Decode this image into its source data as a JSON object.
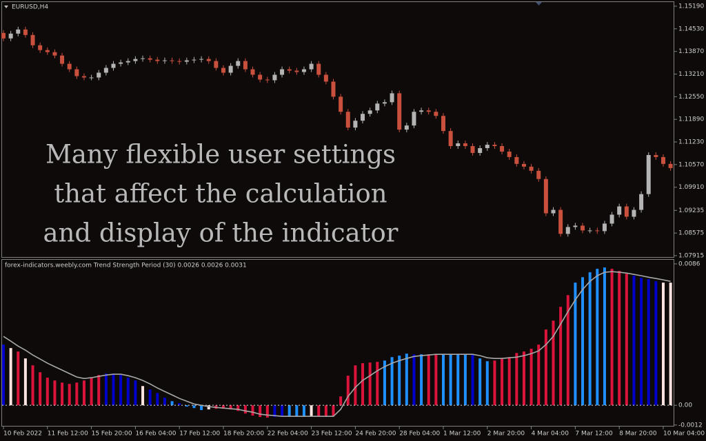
{
  "chart_data": [
    {
      "type": "candlestick",
      "title": "EURUSD,H4",
      "up_color": "#b4b4b4",
      "down_color": "#c9503d",
      "ylim": [
        1.07875,
        1.1531
      ],
      "yticks": [
        {
          "value": 1.1519,
          "label": "1.15190"
        },
        {
          "value": 1.1453,
          "label": "1.14530"
        },
        {
          "value": 1.1387,
          "label": "1.13870"
        },
        {
          "value": 1.1321,
          "label": "1.13210"
        },
        {
          "value": 1.1255,
          "label": "1.12550"
        },
        {
          "value": 1.1189,
          "label": "1.11890"
        },
        {
          "value": 1.1123,
          "label": "1.11230"
        },
        {
          "value": 1.1057,
          "label": "1.10570"
        },
        {
          "value": 1.0991,
          "label": "1.09910"
        },
        1.09235,
        1.08575,
        {
          "value": 1.07915,
          "label": "1.07915"
        }
      ],
      "ohlc": [
        [
          1.1441,
          1.1449,
          1.1417,
          1.1425
        ],
        [
          1.1425,
          1.1447,
          1.1417,
          1.1439
        ],
        [
          1.1439,
          1.1459,
          1.1431,
          1.1451
        ],
        [
          1.1451,
          1.1459,
          1.1427,
          1.1435
        ],
        [
          1.1435,
          1.1443,
          1.1397,
          1.1405
        ],
        [
          1.1405,
          1.1413,
          1.1383,
          1.1391
        ],
        [
          1.1391,
          1.1399,
          1.1377,
          1.1385
        ],
        [
          1.1385,
          1.1393,
          1.1367,
          1.1375
        ],
        [
          1.1375,
          1.1383,
          1.1343,
          1.1351
        ],
        [
          1.1351,
          1.1359,
          1.1327,
          1.1335
        ],
        [
          1.1335,
          1.1343,
          1.1307,
          1.1315
        ],
        [
          1.1315,
          1.1323,
          1.1303,
          1.1311
        ],
        [
          1.1311,
          1.1319,
          1.1303,
          1.1311
        ],
        [
          1.1311,
          1.1333,
          1.1303,
          1.1325
        ],
        [
          1.1325,
          1.1347,
          1.1317,
          1.1339
        ],
        [
          1.1339,
          1.1359,
          1.1331,
          1.1351
        ],
        [
          1.1351,
          1.1363,
          1.1343,
          1.1355
        ],
        [
          1.1355,
          1.1367,
          1.1347,
          1.1359
        ],
        [
          1.1359,
          1.1373,
          1.1351,
          1.1365
        ],
        [
          1.1365,
          1.1375,
          1.1357,
          1.1367
        ],
        [
          1.1367,
          1.1375,
          1.1355,
          1.1363
        ],
        [
          1.1363,
          1.1371,
          1.1351,
          1.1359
        ],
        [
          1.1359,
          1.1369,
          1.1351,
          1.1361
        ],
        [
          1.1361,
          1.1369,
          1.1351,
          1.1359
        ],
        [
          1.1359,
          1.1367,
          1.1349,
          1.1357
        ],
        [
          1.1357,
          1.1369,
          1.1349,
          1.1361
        ],
        [
          1.1361,
          1.1371,
          1.1353,
          1.1363
        ],
        [
          1.1363,
          1.1373,
          1.1355,
          1.1365
        ],
        [
          1.1365,
          1.1373,
          1.1351,
          1.1359
        ],
        [
          1.1359,
          1.1367,
          1.1331,
          1.1339
        ],
        [
          1.1339,
          1.1347,
          1.1317,
          1.1325
        ],
        [
          1.1325,
          1.1353,
          1.1317,
          1.1345
        ],
        [
          1.1345,
          1.1367,
          1.1337,
          1.1359
        ],
        [
          1.1359,
          1.1367,
          1.1327,
          1.1335
        ],
        [
          1.1335,
          1.1343,
          1.1311,
          1.1319
        ],
        [
          1.1319,
          1.1327,
          1.1297,
          1.1305
        ],
        [
          1.1305,
          1.1313,
          1.1295,
          1.1303
        ],
        [
          1.1303,
          1.1327,
          1.1295,
          1.1319
        ],
        [
          1.1319,
          1.1343,
          1.1311,
          1.1335
        ],
        [
          1.1335,
          1.1343,
          1.1323,
          1.1331
        ],
        [
          1.1331,
          1.1339,
          1.1319,
          1.1327
        ],
        [
          1.1327,
          1.1343,
          1.1319,
          1.1335
        ],
        [
          1.1335,
          1.1359,
          1.1327,
          1.1351
        ],
        [
          1.1351,
          1.1359,
          1.1311,
          1.1319
        ],
        [
          1.1319,
          1.1327,
          1.1291,
          1.1299
        ],
        [
          1.1299,
          1.1307,
          1.1247,
          1.1255
        ],
        [
          1.1255,
          1.1263,
          1.1203,
          1.1211
        ],
        [
          1.1211,
          1.1219,
          1.1157,
          1.1165
        ],
        [
          1.1165,
          1.1193,
          1.1157,
          1.1185
        ],
        [
          1.1185,
          1.1213,
          1.1177,
          1.1205
        ],
        [
          1.1205,
          1.1223,
          1.1197,
          1.1215
        ],
        [
          1.1215,
          1.1243,
          1.1207,
          1.1235
        ],
        [
          1.1235,
          1.1247,
          1.1227,
          1.1239
        ],
        [
          1.1239,
          1.1273,
          1.1231,
          1.1265
        ],
        [
          1.1265,
          1.1273,
          1.1151,
          1.1159
        ],
        [
          1.1159,
          1.1179,
          1.1151,
          1.1171
        ],
        [
          1.1171,
          1.1219,
          1.1163,
          1.1211
        ],
        [
          1.1211,
          1.1223,
          1.1203,
          1.1215
        ],
        [
          1.1215,
          1.1223,
          1.1203,
          1.1211
        ],
        [
          1.1211,
          1.1219,
          1.1191,
          1.1199
        ],
        [
          1.1199,
          1.1207,
          1.1147,
          1.1155
        ],
        [
          1.1155,
          1.1163,
          1.1103,
          1.1111
        ],
        [
          1.1111,
          1.1127,
          1.1103,
          1.1119
        ],
        [
          1.1119,
          1.1127,
          1.1103,
          1.1111
        ],
        [
          1.1111,
          1.1119,
          1.1083,
          1.1091
        ],
        [
          1.1091,
          1.1113,
          1.1083,
          1.1105
        ],
        [
          1.1105,
          1.1123,
          1.1097,
          1.1115
        ],
        [
          1.1115,
          1.1123,
          1.1103,
          1.1111
        ],
        [
          1.1111,
          1.1119,
          1.1087,
          1.1095
        ],
        [
          1.1095,
          1.1103,
          1.1071,
          1.1079
        ],
        [
          1.1079,
          1.1087,
          1.1051,
          1.1059
        ],
        [
          1.1059,
          1.1067,
          1.1043,
          1.1051
        ],
        [
          1.1051,
          1.1059,
          1.1031,
          1.1039
        ],
        [
          1.1039,
          1.1047,
          1.1007,
          1.1015
        ],
        [
          1.1015,
          1.1023,
          1.0907,
          1.0915
        ],
        [
          1.0915,
          1.0933,
          1.0907,
          1.0925
        ],
        [
          1.0925,
          1.0933,
          1.0847,
          1.0855
        ],
        [
          1.0855,
          1.0883,
          1.0847,
          1.0875
        ],
        [
          1.0875,
          1.0887,
          1.0867,
          1.0879
        ],
        [
          1.0879,
          1.0887,
          1.0857,
          1.0865
        ],
        [
          1.0865,
          1.0873,
          1.0857,
          1.0865
        ],
        [
          1.0865,
          1.0873,
          1.0855,
          1.0863
        ],
        [
          1.0863,
          1.0893,
          1.0855,
          1.0885
        ],
        [
          1.0885,
          1.0919,
          1.0877,
          1.0911
        ],
        [
          1.0911,
          1.0943,
          1.0903,
          1.0935
        ],
        [
          1.0935,
          1.0943,
          1.0897,
          1.0905
        ],
        [
          1.0905,
          1.0933,
          1.0897,
          1.0925
        ],
        [
          1.0925,
          1.0979,
          1.0917,
          1.0971
        ],
        [
          1.0971,
          1.1093,
          1.0963,
          1.1085
        ],
        [
          1.1085,
          1.1093,
          1.1071,
          1.1079
        ],
        [
          1.1079,
          1.1087,
          1.1051,
          1.1059
        ],
        [
          1.1059,
          1.1067,
          1.1039,
          1.1047
        ]
      ]
    },
    {
      "type": "bar",
      "title": "forex-indicators.weebly.com Trend Strength Period (30) 0.0026 0.0026 0.0031",
      "ylim": [
        -0.00125,
        0.00885
      ],
      "yticks": [
        0.0086,
        {
          "value": 0,
          "label": "0.00"
        },
        -0.0012
      ],
      "line_color": "#a8a8a8",
      "zero_line_color": "#e0e0e0",
      "categories": [
        "10 Feb 2022",
        null,
        null,
        null,
        null,
        null,
        "11 Feb 12:00",
        null,
        null,
        null,
        null,
        null,
        "15 Feb 20:00",
        null,
        null,
        null,
        null,
        null,
        "16 Feb 04:00",
        null,
        null,
        null,
        null,
        null,
        "17 Feb 12:00",
        null,
        null,
        null,
        null,
        null,
        "18 Feb 20:00",
        null,
        null,
        null,
        null,
        null,
        "22 Feb 04:00",
        null,
        null,
        null,
        null,
        null,
        "23 Feb 12:00",
        null,
        null,
        null,
        null,
        null,
        "24 Feb 20:00",
        null,
        null,
        null,
        null,
        null,
        "28 Feb 04:00",
        null,
        null,
        null,
        null,
        null,
        "1 Mar 12:00",
        null,
        null,
        null,
        null,
        null,
        "2 Mar 20:00",
        null,
        null,
        null,
        null,
        null,
        "4 Mar 04:00",
        null,
        null,
        null,
        null,
        null,
        "7 Mar 12:00",
        null,
        null,
        null,
        null,
        null,
        "8 Mar 20:00",
        null,
        null,
        null,
        null,
        null,
        "10 Mar 04:00",
        null
      ],
      "values": [
        0.00369,
        0.00348,
        0.00327,
        0.00285,
        0.00243,
        0.00201,
        0.00168,
        0.00151,
        0.00138,
        0.0013,
        0.00138,
        0.00151,
        0.00168,
        0.00184,
        0.00193,
        0.00193,
        0.00184,
        0.00168,
        0.00151,
        0.00117,
        0.00096,
        0.00075,
        0.00046,
        0.00025,
        0.00013,
        -8e-05,
        -0.00017,
        -0.00029,
        -0.00025,
        -0.00021,
        -0.00021,
        -0.00025,
        -0.00034,
        -0.0005,
        -0.00063,
        -0.00071,
        -0.00075,
        -0.00071,
        -0.00067,
        -0.00067,
        -0.00067,
        -0.00067,
        -0.00067,
        -0.00067,
        -0.00067,
        -0.00067,
        0.00054,
        0.0018,
        0.00243,
        0.00256,
        0.0026,
        0.00264,
        0.00272,
        0.00293,
        0.00302,
        0.00314,
        0.0031,
        0.0031,
        0.0031,
        0.0031,
        0.0031,
        0.0031,
        0.0031,
        0.0031,
        0.00306,
        0.00285,
        0.00268,
        0.00272,
        0.00285,
        0.00293,
        0.00318,
        0.00327,
        0.00344,
        0.00369,
        0.00461,
        0.00515,
        0.00599,
        0.0067,
        0.00746,
        0.00779,
        0.00809,
        0.0083,
        0.00838,
        0.0083,
        0.00817,
        0.008,
        0.00788,
        0.00775,
        0.00767,
        0.00754,
        0.00746,
        0.00746
      ],
      "colors": [
        "#0000cd",
        "#ffe4e1",
        "#dc143c",
        "#ffe4e1",
        "#dc143c",
        "#dc143c",
        "#dc143c",
        "#dc143c",
        "#dc143c",
        "#dc143c",
        "#dc143c",
        "#dc143c",
        "#dc143c",
        "#dc143c",
        "#0000cd",
        "#0000cd",
        "#0000cd",
        "#0000cd",
        "#0000cd",
        "#ffe4e1",
        "#0000cd",
        "#0000cd",
        "#0000cd",
        "#1e90ff",
        "#0000cd",
        "#1e90ff",
        "#1e90ff",
        "#1e90ff",
        "#ffe4e1",
        "#dc143c",
        "#dc143c",
        "#dc143c",
        "#dc143c",
        "#dc143c",
        "#dc143c",
        "#dc143c",
        "#dc143c",
        "#0000cd",
        "#0000cd",
        "#1e90ff",
        "#1e90ff",
        "#1e90ff",
        "#ffe4e1",
        "#dc143c",
        "#dc143c",
        "#dc143c",
        "#dc143c",
        "#dc143c",
        "#dc143c",
        "#dc143c",
        "#dc143c",
        "#dc143c",
        "#1e90ff",
        "#1e90ff",
        "#1e90ff",
        "#1e90ff",
        "#0000cd",
        "#1e90ff",
        "#dc143c",
        "#dc143c",
        "#1e90ff",
        "#1e90ff",
        "#1e90ff",
        "#1e90ff",
        "#0000cd",
        "#1e90ff",
        "#1e90ff",
        "#dc143c",
        "#dc143c",
        "#dc143c",
        "#dc143c",
        "#dc143c",
        "#dc143c",
        "#dc143c",
        "#dc143c",
        "#dc143c",
        "#dc143c",
        "#dc143c",
        "#1e90ff",
        "#1e90ff",
        "#1e90ff",
        "#1e90ff",
        "#1e90ff",
        "#dc143c",
        "#dc143c",
        "#dc143c",
        "#0000cd",
        "#0000cd",
        "#0000cd",
        "#0000cd",
        "#ffe4e1",
        "#ffe4e1"
      ],
      "signal": [
        0.00419,
        0.0039,
        0.0036,
        0.00335,
        0.00306,
        0.00281,
        0.00256,
        0.00235,
        0.00214,
        0.00193,
        0.00172,
        0.00163,
        0.00168,
        0.00176,
        0.00184,
        0.00189,
        0.00189,
        0.0018,
        0.00168,
        0.00151,
        0.0013,
        0.00105,
        0.00084,
        0.00063,
        0.00042,
        0.00025,
        8e-05,
        0,
        -8e-05,
        -0.00013,
        -0.00017,
        -0.00021,
        -0.00025,
        -0.00034,
        -0.00042,
        -0.00054,
        -0.00059,
        -0.00063,
        -0.00067,
        -0.00067,
        -0.00067,
        -0.00067,
        -0.00067,
        -0.00067,
        -0.00067,
        -0.00067,
        -0.00025,
        0.00054,
        0.00109,
        0.00151,
        0.0018,
        0.0021,
        0.00235,
        0.00256,
        0.00272,
        0.00285,
        0.00297,
        0.00302,
        0.00306,
        0.0031,
        0.0031,
        0.0031,
        0.0031,
        0.0031,
        0.0031,
        0.00302,
        0.00289,
        0.00285,
        0.00285,
        0.00289,
        0.00293,
        0.00302,
        0.00314,
        0.00331,
        0.00369,
        0.00419,
        0.00494,
        0.0057,
        0.00641,
        0.00704,
        0.00754,
        0.00788,
        0.00809,
        0.00813,
        0.00809,
        0.00804,
        0.00796,
        0.00788,
        0.00779,
        0.00771,
        0.00763,
        0.00754
      ]
    }
  ],
  "overlay_text": [
    "Many flexible user settings",
    "that affect the calculation",
    "and display of the indicator"
  ]
}
